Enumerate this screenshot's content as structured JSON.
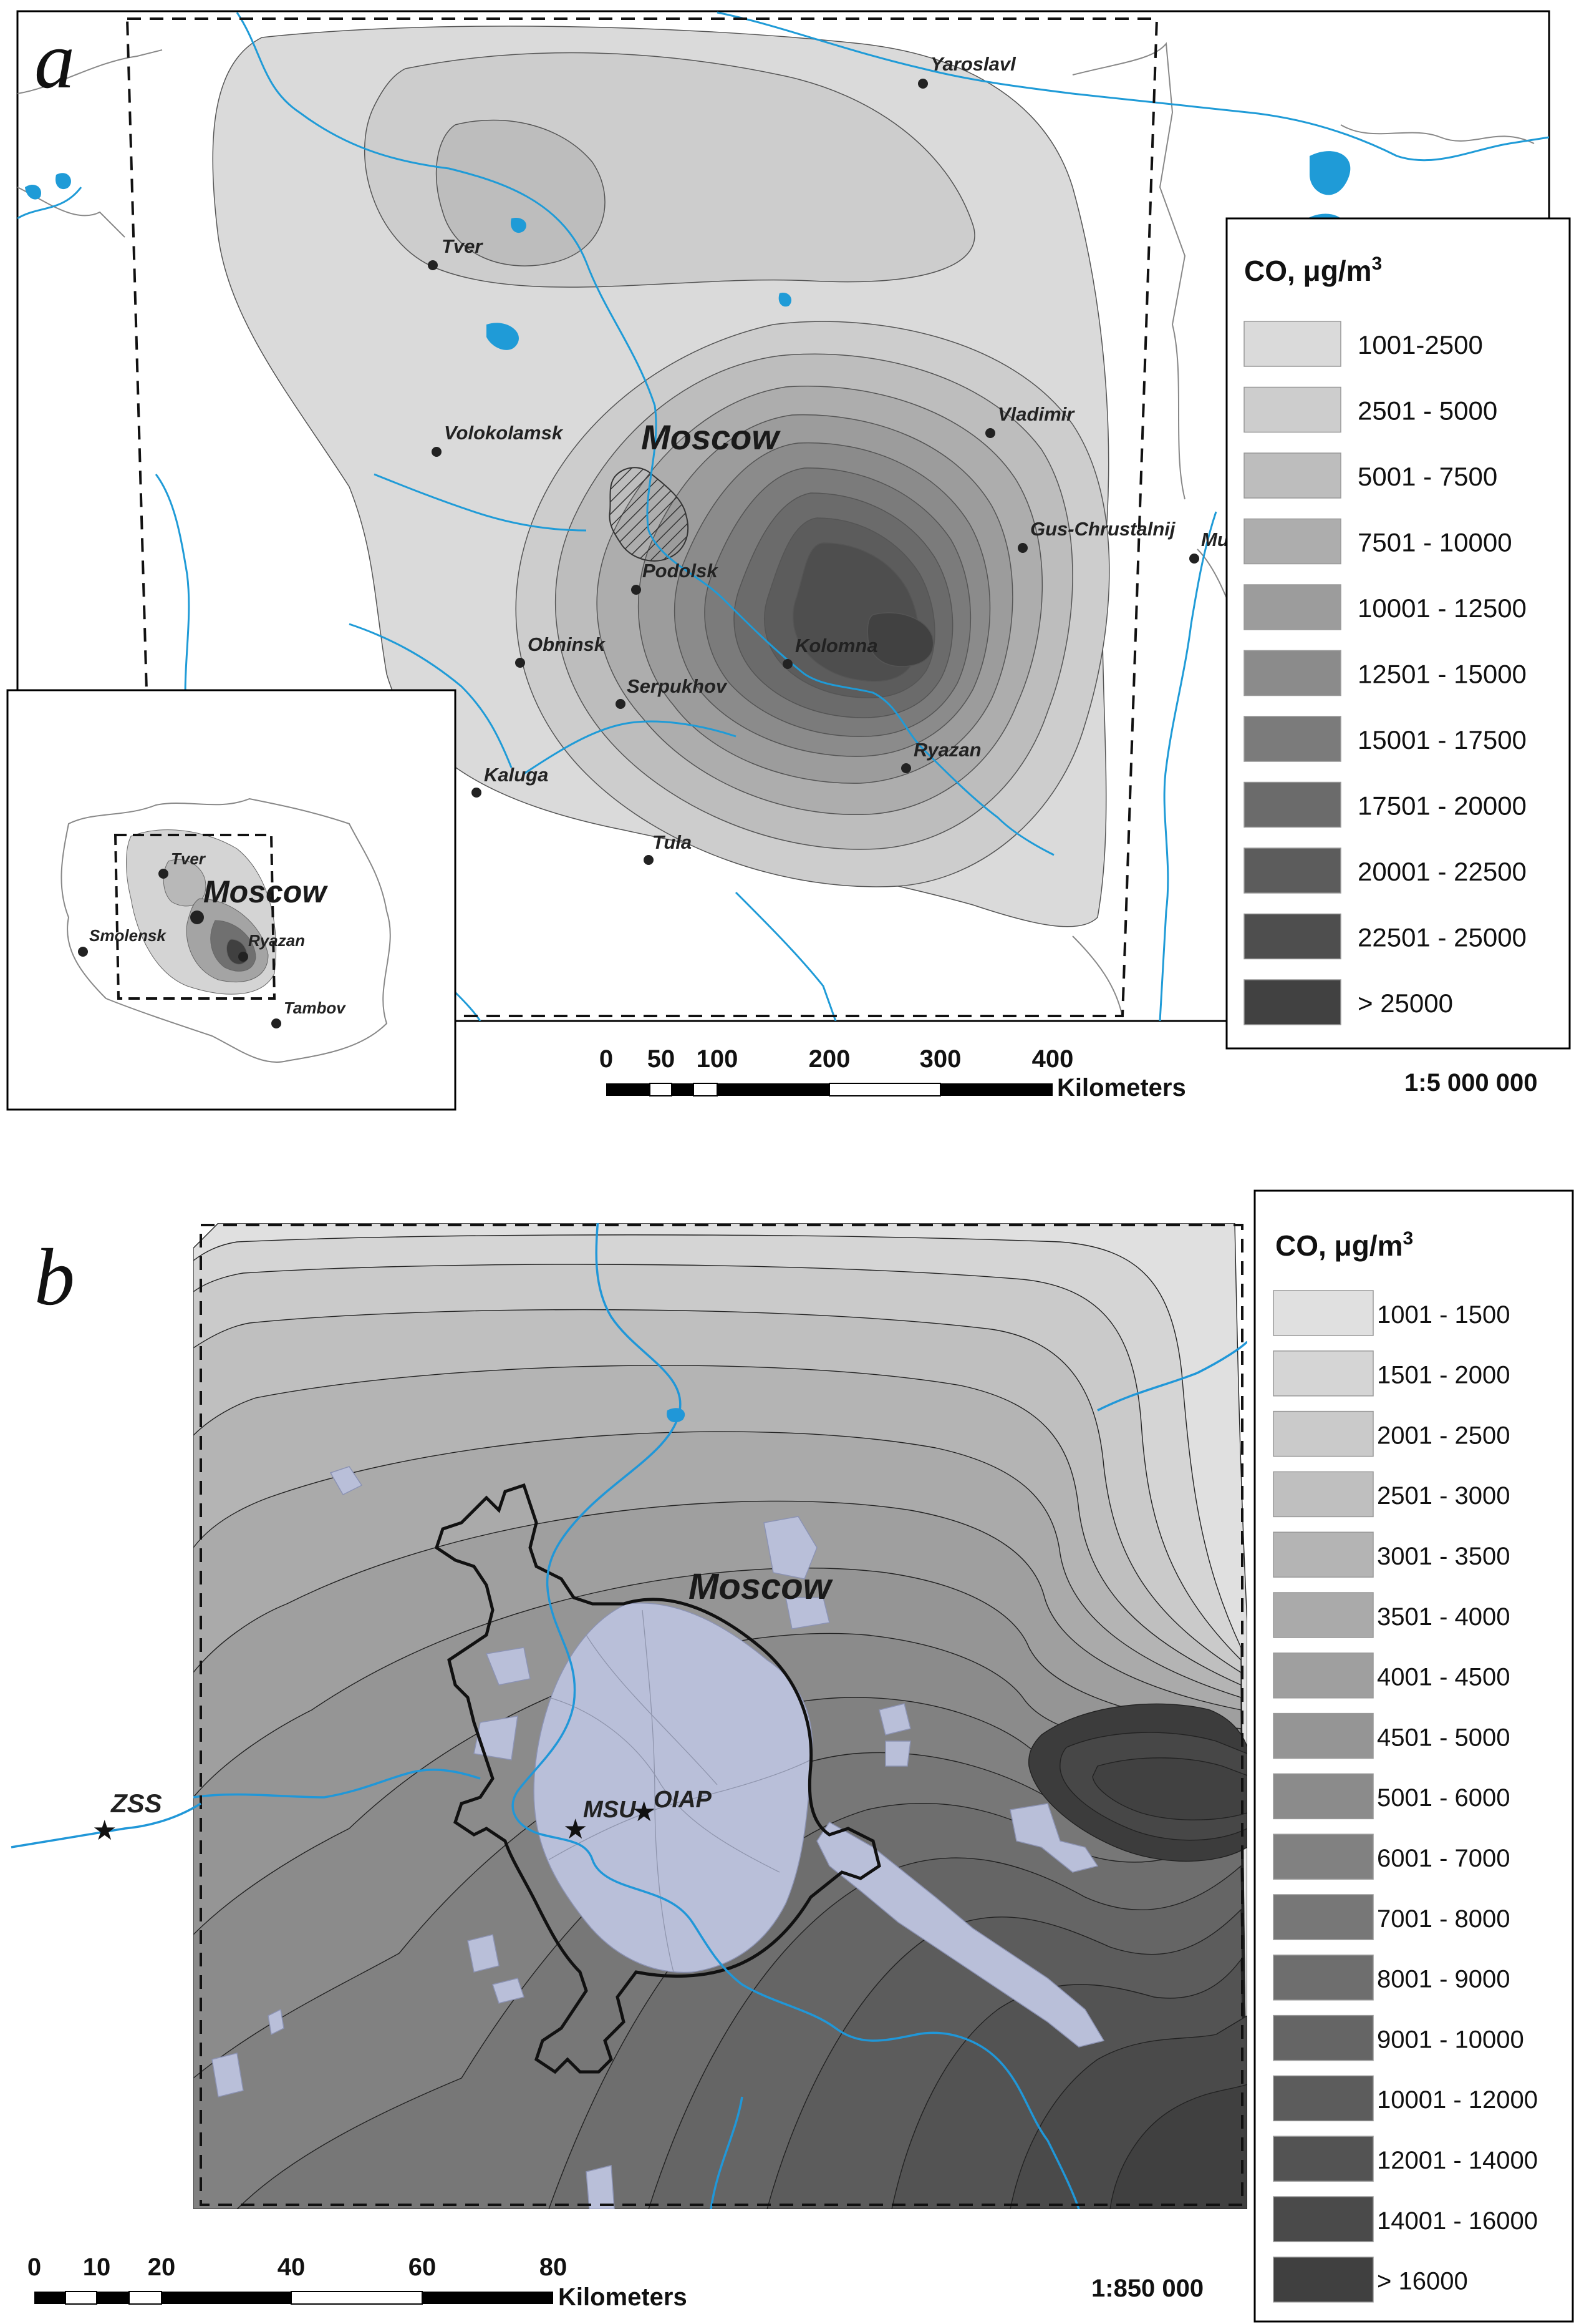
{
  "panel_a": {
    "letter": "a",
    "main_label": "Moscow",
    "cities": [
      {
        "name": "Yaroslavl"
      },
      {
        "name": "Tver"
      },
      {
        "name": "Volokolamsk"
      },
      {
        "name": "Vladimir"
      },
      {
        "name": "Gus-Chrustalnij"
      },
      {
        "name": "Mu"
      },
      {
        "name": "Podolsk"
      },
      {
        "name": "Obninsk"
      },
      {
        "name": "Kolomna"
      },
      {
        "name": "Serpukhov"
      },
      {
        "name": "Ryazan"
      },
      {
        "name": "Kaluga"
      },
      {
        "name": "Tula"
      }
    ],
    "inset": {
      "main_label": "Moscow",
      "cities": [
        {
          "name": "Tver"
        },
        {
          "name": "Smolensk"
        },
        {
          "name": "Ryazan"
        },
        {
          "name": "Tambov"
        }
      ]
    },
    "legend": {
      "title": "CO, μg/m",
      "title_sup": "3",
      "classes": [
        {
          "label": "1001-2500",
          "color": "#dadada"
        },
        {
          "label": "2501 - 5000",
          "color": "#cdcdcd"
        },
        {
          "label": "5001 - 7500",
          "color": "#bdbdbd"
        },
        {
          "label": "7501 - 10000",
          "color": "#adadad"
        },
        {
          "label": "10001 - 12500",
          "color": "#9c9c9c"
        },
        {
          "label": "12501 - 15000",
          "color": "#8b8b8b"
        },
        {
          "label": "15001 - 17500",
          "color": "#7b7b7b"
        },
        {
          "label": "17501 - 20000",
          "color": "#6b6b6b"
        },
        {
          "label": "20001 - 22500",
          "color": "#5c5c5c"
        },
        {
          "label": "22501 - 25000",
          "color": "#4e4e4e"
        },
        {
          "label": "> 25000",
          "color": "#414141"
        }
      ]
    },
    "scale": {
      "ticks": [
        "0",
        "50",
        "100",
        "200",
        "300",
        "400"
      ],
      "unit": "Kilometers",
      "ratio": "1:5 000 000"
    }
  },
  "panel_b": {
    "letter": "b",
    "main_label": "Moscow",
    "stations": [
      {
        "name": "ZSS"
      },
      {
        "name": "MSU"
      },
      {
        "name": "OIAP"
      }
    ],
    "legend": {
      "title": "CO, μg/m",
      "title_sup": "3",
      "classes": [
        {
          "label": "1001 - 1500",
          "color": "#e0e0e0"
        },
        {
          "label": "1501 - 2000",
          "color": "#d5d5d5"
        },
        {
          "label": "2001 - 2500",
          "color": "#cacaca"
        },
        {
          "label": "2501 - 3000",
          "color": "#bfbfbf"
        },
        {
          "label": "3001 - 3500",
          "color": "#b4b4b4"
        },
        {
          "label": "3501 - 4000",
          "color": "#aaaaaa"
        },
        {
          "label": "4001 - 4500",
          "color": "#9f9f9f"
        },
        {
          "label": "4501 - 5000",
          "color": "#959595"
        },
        {
          "label": "5001 - 6000",
          "color": "#8b8b8b"
        },
        {
          "label": "6001 - 7000",
          "color": "#818181"
        },
        {
          "label": "7001 - 8000",
          "color": "#777777"
        },
        {
          "label": "8001 - 9000",
          "color": "#6e6e6e"
        },
        {
          "label": "9001 - 10000",
          "color": "#656565"
        },
        {
          "label": "10001 - 12000",
          "color": "#5c5c5c"
        },
        {
          "label": "12001 - 14000",
          "color": "#535353"
        },
        {
          "label": "14001 - 16000",
          "color": "#4a4a4a"
        },
        {
          "label": "> 16000",
          "color": "#404040"
        }
      ]
    },
    "scale": {
      "ticks": [
        "0",
        "10",
        "20",
        "40",
        "60",
        "80"
      ],
      "unit": "Kilometers",
      "ratio": "1:850 000"
    }
  }
}
